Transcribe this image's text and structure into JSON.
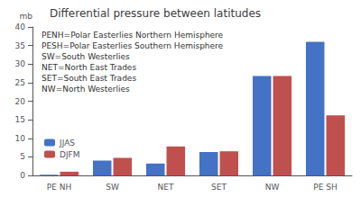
{
  "chart_data": {
    "type": "bar",
    "title": "Differential pressure between latitudes",
    "ylabel": "mb",
    "annotations": [
      "PENH=Polar Easterlies Northern Hemisphere",
      "PESH=Polar Easterlies Southern Hemisphere",
      "SW=South Westerlies",
      "NET=North East Trades",
      "SET=South East Trades",
      "NW=North Westerlies"
    ],
    "categories": [
      "PE NH",
      "SW",
      "NET",
      "SET",
      "NW",
      "PE SH"
    ],
    "series": [
      {
        "name": "JJAS",
        "color": "#4472C4",
        "values": [
          0.2,
          4.0,
          3.2,
          6.3,
          26.8,
          36.0
        ]
      },
      {
        "name": "DJFM",
        "color": "#C0504D",
        "values": [
          1.0,
          4.7,
          7.8,
          6.5,
          26.8,
          16.2
        ]
      }
    ],
    "ylim": [
      0,
      40
    ],
    "yticks": [
      0,
      5,
      10,
      15,
      20,
      25,
      30,
      35,
      40
    ],
    "grid": false,
    "legend": "lower left"
  }
}
